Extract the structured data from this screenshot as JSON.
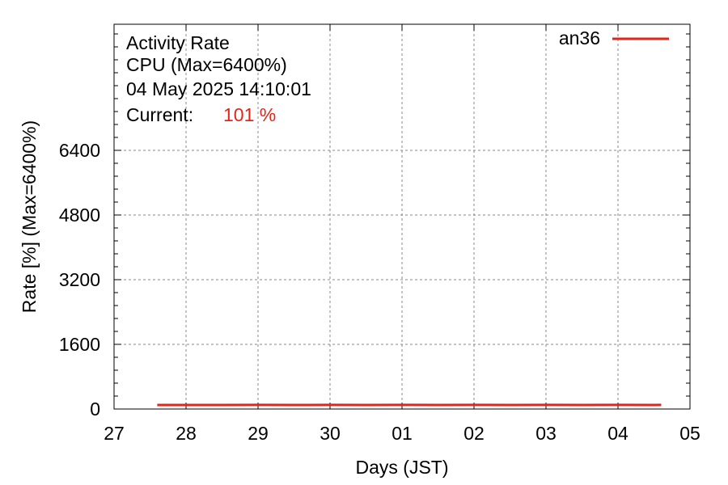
{
  "chart_data": {
    "type": "line",
    "title_lines": [
      "Activity Rate",
      "CPU (Max=6400%)",
      "04 May 2025 14:10:01"
    ],
    "current_label": "Current:",
    "current_value": "101 %",
    "xlabel": "Days (JST)",
    "ylabel": "Rate [%]  (Max=6400%)",
    "x_tick_labels": [
      "27",
      "28",
      "29",
      "30",
      "01",
      "02",
      "03",
      "04",
      "05"
    ],
    "x_range": [
      0,
      8
    ],
    "y_ticks": [
      0,
      1600,
      3200,
      4800,
      6400
    ],
    "ylim": [
      0,
      9520
    ],
    "grid": true,
    "legend_position": "top-right",
    "series": [
      {
        "name": "an36",
        "color": "#e3241b",
        "x": [
          0.6,
          1.0,
          1.5,
          2.0,
          2.5,
          3.0,
          3.5,
          4.0,
          4.5,
          5.0,
          5.5,
          6.0,
          6.5,
          7.0,
          7.5,
          7.6
        ],
        "values": [
          100,
          100,
          100,
          102,
          100,
          101,
          100,
          102,
          100,
          101,
          100,
          101,
          100,
          101,
          100,
          101
        ]
      }
    ]
  }
}
